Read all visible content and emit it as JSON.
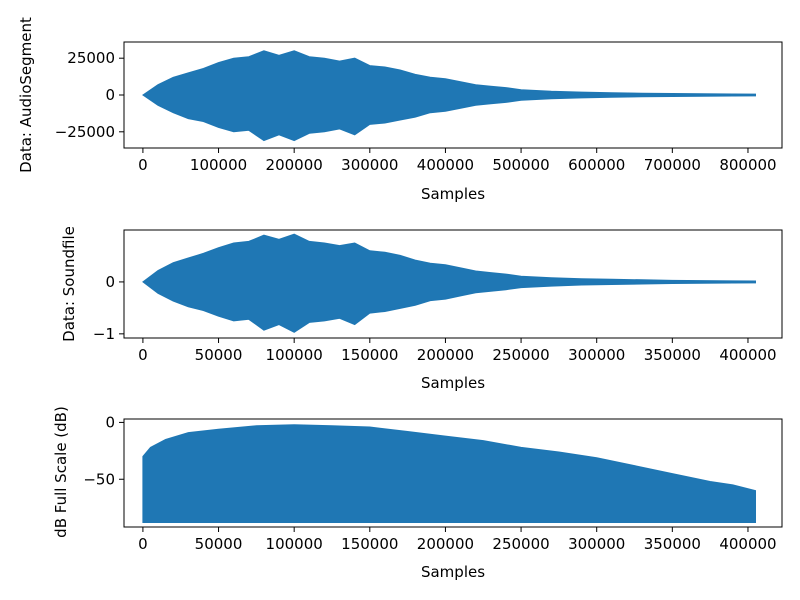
{
  "figure": {
    "background": "#ffffff",
    "line_color": "#1f77b4"
  },
  "chart_data": [
    {
      "type": "area",
      "title": "",
      "xlabel": "Samples",
      "ylabel": "Data: AudioSegment",
      "xlim": [
        -25000,
        845000
      ],
      "ylim": [
        -36000,
        36000
      ],
      "xticks": [
        0,
        100000,
        200000,
        300000,
        400000,
        500000,
        600000,
        700000,
        800000
      ],
      "xtick_labels": [
        "0",
        "100000",
        "200000",
        "300000",
        "400000",
        "500000",
        "600000",
        "700000",
        "800000"
      ],
      "yticks": [
        25000,
        0,
        -25000
      ],
      "ytick_labels": [
        "25000",
        "0",
        "−25000"
      ],
      "grid": false,
      "series": [
        {
          "color": "#1f77b4",
          "mode": "band",
          "x": [
            0,
            20000,
            40000,
            60000,
            80000,
            100000,
            120000,
            140000,
            160000,
            180000,
            200000,
            220000,
            240000,
            260000,
            280000,
            300000,
            320000,
            340000,
            360000,
            380000,
            400000,
            420000,
            440000,
            460000,
            480000,
            500000,
            540000,
            580000,
            620000,
            660000,
            700000,
            740000,
            780000,
            810000
          ],
          "upper": [
            0,
            7000,
            12000,
            15000,
            18000,
            22000,
            25000,
            26000,
            30000,
            27000,
            30000,
            26000,
            25000,
            23000,
            25000,
            20000,
            19000,
            17000,
            14000,
            12000,
            11000,
            9000,
            7000,
            6000,
            5000,
            3500,
            2500,
            2000,
            1500,
            1200,
            1000,
            800,
            700,
            600
          ],
          "lower": [
            0,
            -7000,
            -12000,
            -16000,
            -18000,
            -22000,
            -25000,
            -24000,
            -31000,
            -27000,
            -31000,
            -26000,
            -25000,
            -23000,
            -27000,
            -20000,
            -19000,
            -17000,
            -15000,
            -12000,
            -11000,
            -9000,
            -7000,
            -6000,
            -5000,
            -3500,
            -2500,
            -2000,
            -1500,
            -1200,
            -1000,
            -800,
            -700,
            -600
          ]
        }
      ]
    },
    {
      "type": "area",
      "title": "",
      "xlabel": "Samples",
      "ylabel": "Data: Soundfile",
      "xlim": [
        -12500,
        422500
      ],
      "ylim": [
        -1.08,
        1.0
      ],
      "xticks": [
        0,
        50000,
        100000,
        150000,
        200000,
        250000,
        300000,
        350000,
        400000
      ],
      "xtick_labels": [
        "0",
        "50000",
        "100000",
        "150000",
        "200000",
        "250000",
        "300000",
        "350000",
        "400000"
      ],
      "yticks": [
        0,
        -1
      ],
      "ytick_labels": [
        "0",
        "−1"
      ],
      "grid": false,
      "series": [
        {
          "color": "#1f77b4",
          "mode": "band",
          "x": [
            0,
            10000,
            20000,
            30000,
            40000,
            50000,
            60000,
            70000,
            80000,
            90000,
            100000,
            110000,
            120000,
            130000,
            140000,
            150000,
            160000,
            170000,
            180000,
            190000,
            200000,
            210000,
            220000,
            230000,
            240000,
            250000,
            270000,
            290000,
            310000,
            330000,
            350000,
            370000,
            390000,
            405000
          ],
          "upper": [
            0,
            0.22,
            0.37,
            0.46,
            0.55,
            0.66,
            0.75,
            0.78,
            0.9,
            0.82,
            0.92,
            0.78,
            0.75,
            0.7,
            0.75,
            0.6,
            0.57,
            0.51,
            0.42,
            0.36,
            0.33,
            0.27,
            0.21,
            0.18,
            0.15,
            0.11,
            0.08,
            0.06,
            0.05,
            0.04,
            0.03,
            0.025,
            0.02,
            0.018
          ],
          "lower": [
            0,
            -0.22,
            -0.37,
            -0.48,
            -0.55,
            -0.66,
            -0.75,
            -0.72,
            -0.93,
            -0.82,
            -0.97,
            -0.78,
            -0.75,
            -0.7,
            -0.82,
            -0.6,
            -0.57,
            -0.51,
            -0.45,
            -0.36,
            -0.33,
            -0.27,
            -0.21,
            -0.18,
            -0.15,
            -0.11,
            -0.08,
            -0.06,
            -0.05,
            -0.04,
            -0.03,
            -0.025,
            -0.02,
            -0.018
          ]
        }
      ]
    },
    {
      "type": "area",
      "title": "",
      "xlabel": "Samples",
      "ylabel": "dB Full Scale (dB)",
      "xlim": [
        -12500,
        422500
      ],
      "ylim": [
        -92,
        3
      ],
      "xticks": [
        0,
        50000,
        100000,
        150000,
        200000,
        250000,
        300000,
        350000,
        400000
      ],
      "xtick_labels": [
        "0",
        "50000",
        "100000",
        "150000",
        "200000",
        "250000",
        "300000",
        "350000",
        "400000"
      ],
      "yticks": [
        0,
        -50
      ],
      "ytick_labels": [
        "0",
        "−50"
      ],
      "grid": false,
      "series": [
        {
          "color": "#1f77b4",
          "mode": "band",
          "x": [
            0,
            5000,
            15000,
            30000,
            50000,
            75000,
            100000,
            125000,
            150000,
            175000,
            200000,
            225000,
            250000,
            275000,
            300000,
            325000,
            350000,
            375000,
            390000,
            405000
          ],
          "upper": [
            -30,
            -22,
            -15,
            -9,
            -6,
            -3,
            -2,
            -3,
            -4,
            -8,
            -12,
            -16,
            -22,
            -26,
            -31,
            -38,
            -45,
            -52,
            -55,
            -60
          ],
          "lower": [
            -88,
            -88,
            -88,
            -88,
            -88,
            -88,
            -88,
            -88,
            -88,
            -88,
            -88,
            -88,
            -88,
            -88,
            -88,
            -88,
            -88,
            -88,
            -88,
            -88
          ]
        }
      ]
    }
  ]
}
